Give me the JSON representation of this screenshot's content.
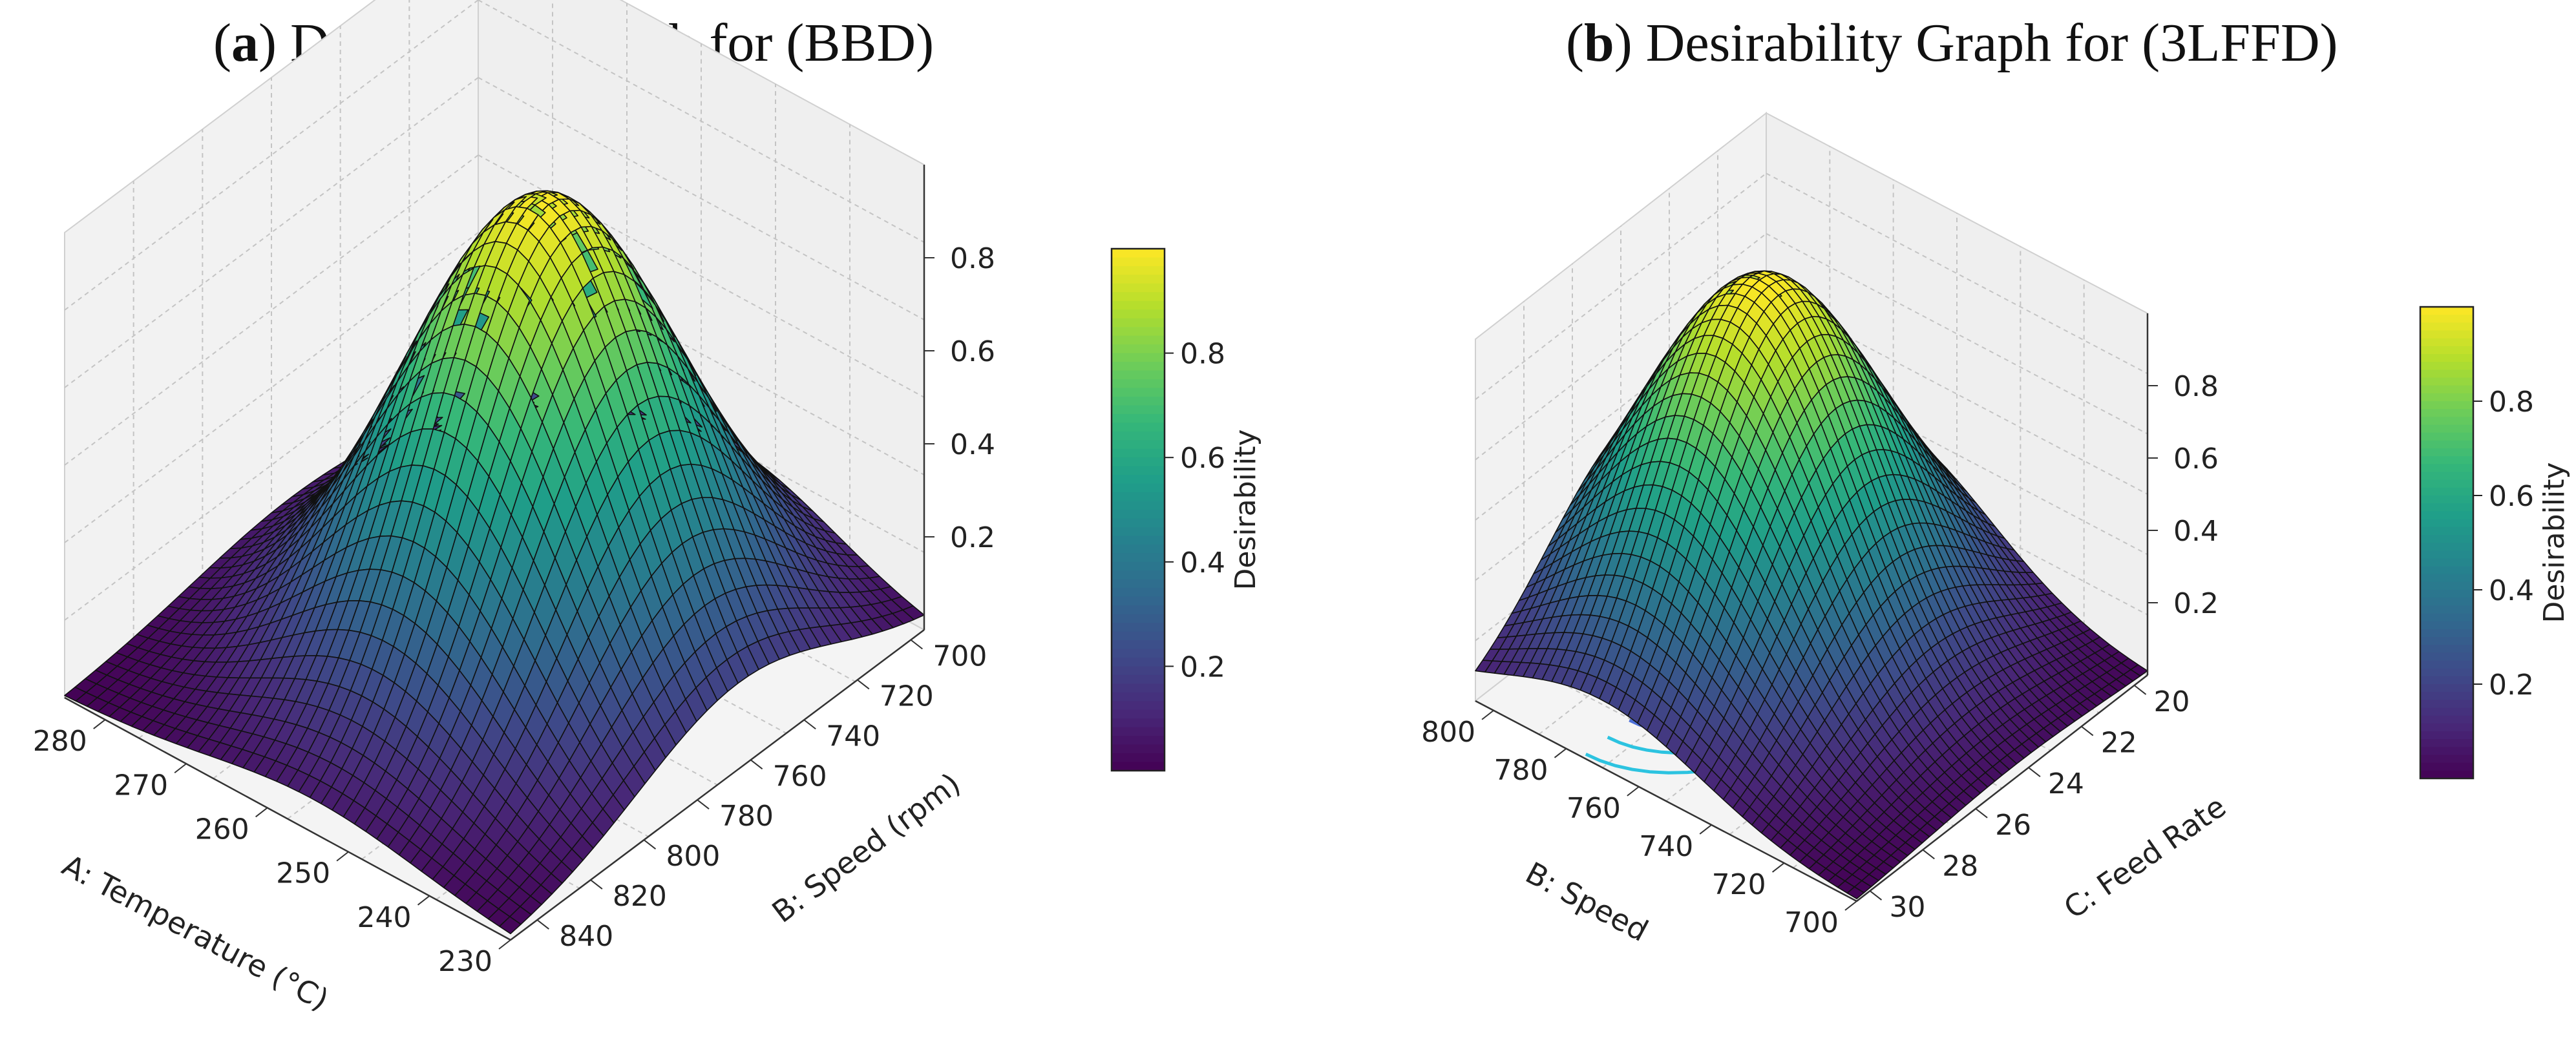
{
  "panels": [
    {
      "title_letter": "a",
      "title_rest": ") Desirability Graph for (BBD)",
      "chart_data": {
        "type": "surface3d",
        "title": "(a) Desirability Graph for (BBD)",
        "x_axis": {
          "label": "A: Temperature (°C)",
          "ticks": [
            "280",
            "270",
            "260",
            "250",
            "240",
            "230"
          ],
          "range": [
            230,
            285
          ]
        },
        "y_axis": {
          "label": "B: Speed (rpm)",
          "ticks": [
            "700",
            "720",
            "740",
            "760",
            "780",
            "800",
            "820",
            "840"
          ],
          "range": [
            695,
            850
          ]
        },
        "z_axis": {
          "label": "Desirability",
          "ticks": [
            "0.2",
            "0.4",
            "0.6",
            "0.8"
          ],
          "range": [
            0,
            1
          ]
        },
        "colorbar": {
          "label": "Desirability",
          "ticks": [
            "0.2",
            "0.4",
            "0.6",
            "0.8"
          ],
          "colormap": "viridis"
        },
        "peak": {
          "temperature": 255,
          "speed": 770,
          "desirability": 1.0
        }
      }
    },
    {
      "title_letter": "b",
      "title_rest": ") Desirability Graph for (3LFFD)",
      "chart_data": {
        "type": "surface3d",
        "title": "(b) Desirability Graph for (3LFFD)",
        "x_axis": {
          "label": "B: Speed",
          "ticks": [
            "800",
            "780",
            "760",
            "740",
            "720",
            "700"
          ],
          "range": [
            700,
            805
          ]
        },
        "y_axis": {
          "label": "C: Feed Rate",
          "ticks": [
            "20",
            "22",
            "24",
            "26",
            "28",
            "30"
          ],
          "range": [
            19.5,
            30.5
          ]
        },
        "z_axis": {
          "label": "",
          "ticks": [
            "0.2",
            "0.4",
            "0.6",
            "0.8"
          ],
          "range": [
            0,
            1
          ]
        },
        "colorbar": {
          "label": "Desirability",
          "ticks": [
            "0.2",
            "0.4",
            "0.6",
            "0.8"
          ],
          "colormap": "viridis"
        },
        "peak": {
          "speed": 755,
          "feed_rate": 25,
          "desirability": 1.0
        },
        "floor_contours": true
      }
    }
  ],
  "colors": {
    "contour_cyan": "#2cc3e0",
    "contour_blue": "#4d6fd8",
    "contour_purple": "#b05ce0",
    "grid": "#c8c8c8"
  }
}
